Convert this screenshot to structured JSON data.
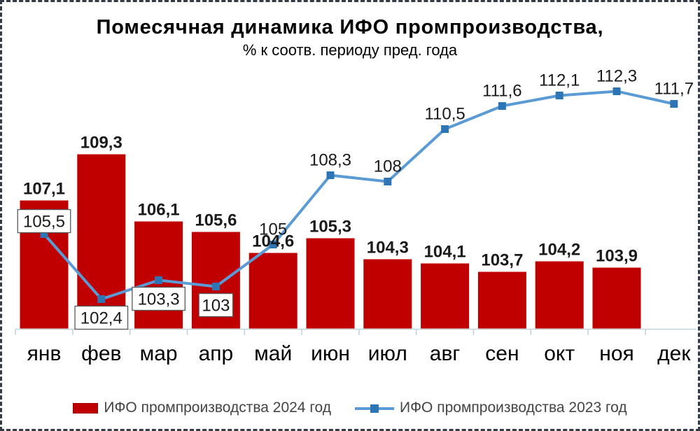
{
  "chart_data": {
    "type": "combo",
    "title": "Помесячная динамика ИФО промпроизводства,",
    "subtitle": "% к соотв. периоду пред. года",
    "categories": [
      "янв",
      "фев",
      "мар",
      "апр",
      "май",
      "июн",
      "июл",
      "авг",
      "сен",
      "окт",
      "ноя",
      "дек"
    ],
    "series": [
      {
        "name": "ИФО промпроизводства 2024 год",
        "type": "bar",
        "values": [
          107.1,
          109.3,
          106.1,
          105.6,
          104.6,
          105.3,
          104.3,
          104.1,
          103.7,
          104.2,
          103.9,
          null
        ],
        "labels": [
          "107,1",
          "109,3",
          "106,1",
          "105,6",
          "104,6",
          "105,3",
          "104,3",
          "104,1",
          "103,7",
          "104,2",
          "103,9",
          ""
        ]
      },
      {
        "name": "ИФО промпроизводства 2023 год",
        "type": "line",
        "values": [
          105.5,
          102.4,
          103.3,
          103,
          105,
          108.3,
          108,
          110.5,
          111.6,
          112.1,
          112.3,
          111.7
        ],
        "labels": [
          "105,5",
          "102,4",
          "103,3",
          "103",
          "105",
          "108,3",
          "108",
          "110,5",
          "111,6",
          "112,1",
          "112,3",
          "111,7"
        ],
        "boxed_label_indices": [
          0,
          1,
          2,
          3
        ],
        "label_below_indices": [
          1,
          2,
          3
        ]
      }
    ],
    "ylim": [
      101,
      113.5
    ],
    "grid": "off",
    "y_axis_visible": false,
    "legend_position": "bottom"
  },
  "colors": {
    "bar": "#c00000",
    "bar_edge": "#9c0000",
    "line": "#5b9bd5",
    "marker": "#2e75b6",
    "axis": "#c3d2da",
    "label_text": "#1a1a1a",
    "label_box_bg": "#ffffff",
    "label_box_border": "#595959",
    "x_label": "#000000",
    "legend_text": "#444444"
  }
}
